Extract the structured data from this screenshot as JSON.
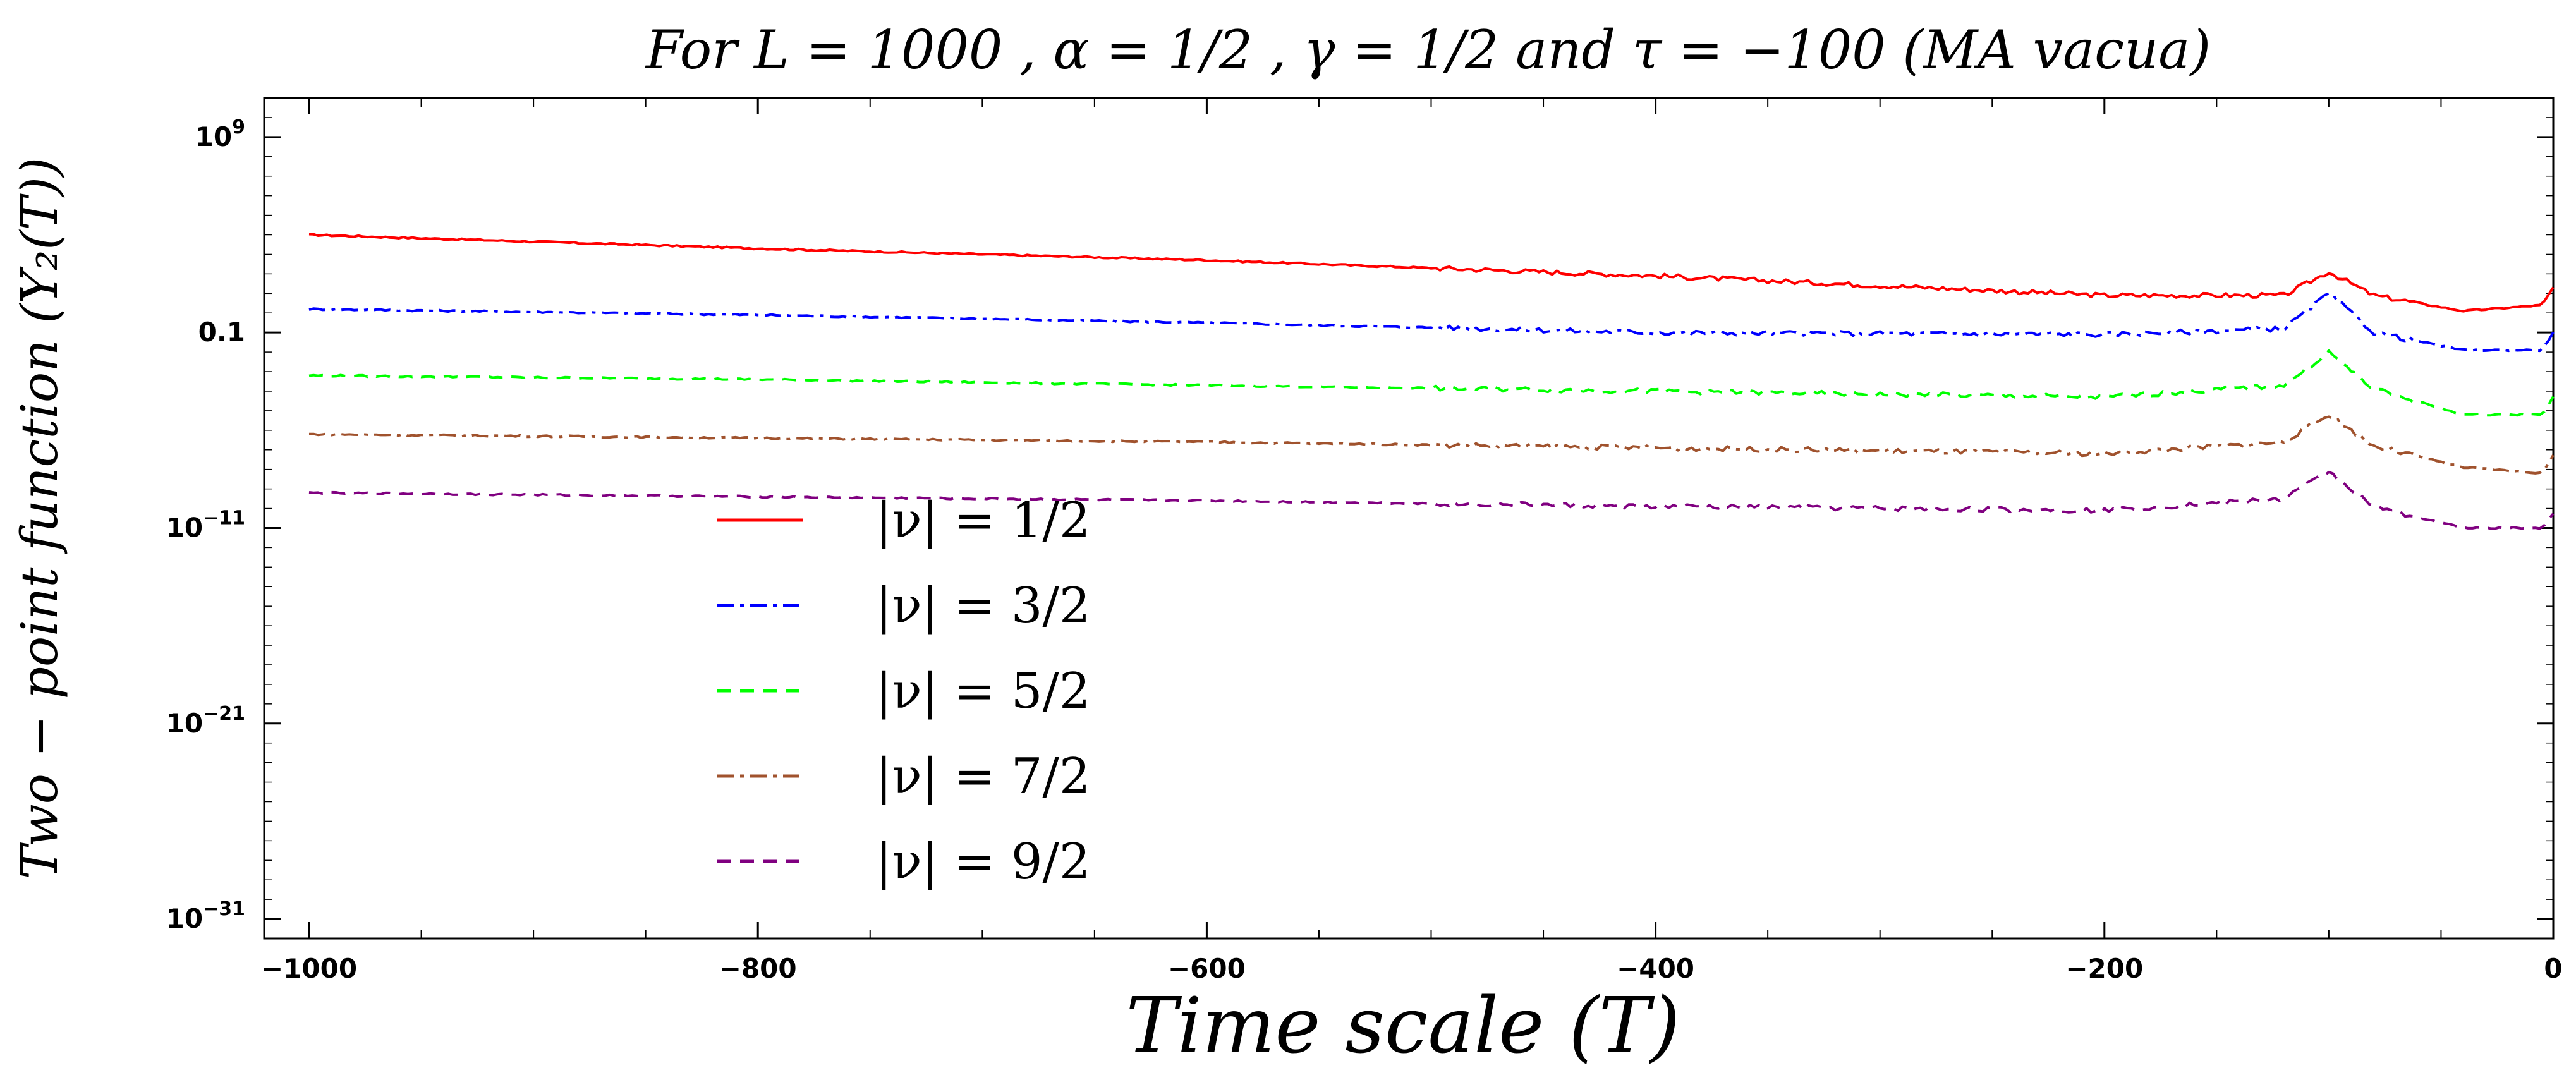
{
  "chart_data": {
    "type": "line",
    "title": "For L = 1000 , α = 1/2 , γ = 1/2 and τ = −100 (MA vacua)",
    "xlabel": "Time scale  (T)",
    "ylabel": "Two − point function (Y₂(T))",
    "xlim": [
      -1020,
      0
    ],
    "x_ticks": [
      -1000,
      -800,
      -600,
      -400,
      -200,
      0
    ],
    "x_tick_labels": [
      "−1000",
      "−800",
      "−600",
      "−400",
      "−200",
      "0"
    ],
    "ylim_log10": [
      -32,
      11
    ],
    "y_ticks_log10": [
      9,
      -1,
      -11,
      -21,
      -31
    ],
    "y_tick_labels": [
      {
        "base": "10",
        "exp": "9"
      },
      {
        "base": "0.1",
        "exp": ""
      },
      {
        "base": "10",
        "exp": "−11"
      },
      {
        "base": "10",
        "exp": "−21"
      },
      {
        "base": "10",
        "exp": "−31"
      }
    ],
    "legend_position": "center-left",
    "series": [
      {
        "name": "|ν| = 1/2",
        "color": "#ff0000",
        "dash": "solid",
        "x": [
          -1000,
          -800,
          -600,
          -400,
          -200,
          -120,
          -100,
          -80,
          -40,
          -5,
          0
        ],
        "log10_y": [
          4.0,
          3.3,
          2.7,
          1.9,
          0.9,
          0.9,
          2.1,
          0.9,
          0.1,
          0.4,
          1.3
        ]
      },
      {
        "name": "|ν| = 3/2",
        "color": "#0000ff",
        "dash": "dot-dash",
        "x": [
          -1000,
          -800,
          -600,
          -400,
          -200,
          -120,
          -100,
          -80,
          -40,
          -5,
          0
        ],
        "log10_y": [
          0.2,
          -0.1,
          -0.5,
          -1.0,
          -1.1,
          -0.8,
          1.0,
          -1.0,
          -1.9,
          -1.9,
          -1.0
        ]
      },
      {
        "name": "|ν| = 5/2",
        "color": "#00ff00",
        "dash": "dashed",
        "x": [
          -1000,
          -800,
          -600,
          -400,
          -200,
          -120,
          -100,
          -80,
          -40,
          -5,
          0
        ],
        "log10_y": [
          -3.2,
          -3.4,
          -3.7,
          -4.0,
          -4.3,
          -3.7,
          -2.0,
          -3.9,
          -5.2,
          -5.2,
          -4.3
        ]
      },
      {
        "name": "|ν| = 7/2",
        "color": "#a0522d",
        "dash": "dot-dash",
        "x": [
          -1000,
          -800,
          -600,
          -400,
          -200,
          -120,
          -100,
          -80,
          -40,
          -5,
          0
        ],
        "log10_y": [
          -6.2,
          -6.4,
          -6.6,
          -6.9,
          -7.2,
          -6.6,
          -5.2,
          -6.8,
          -7.9,
          -8.2,
          -7.3
        ]
      },
      {
        "name": "|ν| = 9/2",
        "color": "#800080",
        "dash": "dashed",
        "x": [
          -1000,
          -800,
          -600,
          -400,
          -200,
          -120,
          -100,
          -80,
          -40,
          -5,
          0
        ],
        "log10_y": [
          -9.2,
          -9.4,
          -9.6,
          -9.9,
          -10.1,
          -9.5,
          -8.1,
          -9.9,
          -11.0,
          -11.0,
          -10.3
        ]
      }
    ]
  }
}
